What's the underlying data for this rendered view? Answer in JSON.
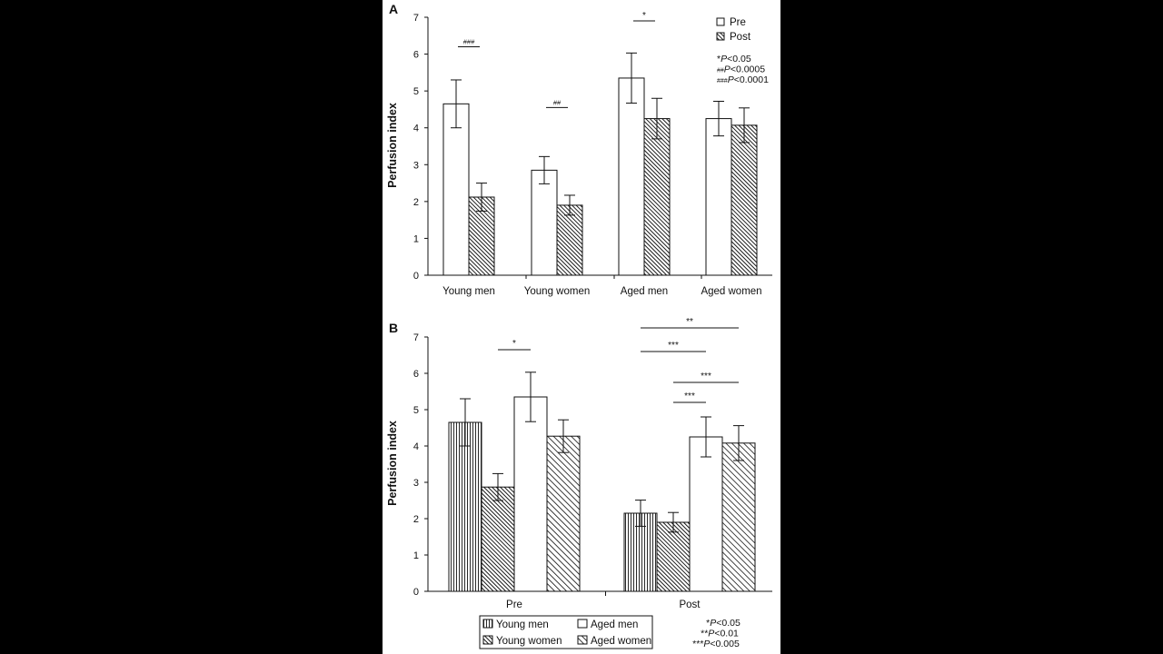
{
  "chart_data": [
    {
      "panel_label": "A",
      "type": "bar",
      "categories": [
        "Young men",
        "Young women",
        "Aged men",
        "Aged women"
      ],
      "series": [
        {
          "name": "Pre",
          "pattern": "white",
          "values": [
            4.65,
            2.85,
            5.35,
            4.25
          ],
          "errors": [
            0.65,
            0.37,
            0.68,
            0.47
          ]
        },
        {
          "name": "Post",
          "pattern": "hatch-dense",
          "values": [
            2.12,
            1.9,
            4.25,
            4.07
          ],
          "errors": [
            0.38,
            0.27,
            0.55,
            0.47
          ]
        }
      ],
      "ylabel": "Perfusion index",
      "xlabel": "",
      "ylim": [
        0,
        7
      ],
      "yticks": [
        "0",
        "1",
        "2",
        "3",
        "4",
        "5",
        "6",
        "7"
      ],
      "legend": [
        {
          "pattern": "white",
          "label": "Pre"
        },
        {
          "pattern": "hatch-dense",
          "label": "Post"
        }
      ],
      "significance_legend": [
        {
          "symbol": "*",
          "text": "P<0.05"
        },
        {
          "symbol": "##",
          "text": "P<0.0005"
        },
        {
          "symbol": "###",
          "text": "P<0.0001"
        }
      ],
      "annotations": [
        {
          "label": "###",
          "category": 0,
          "y_value": 6.2
        },
        {
          "label": "##",
          "category": 1,
          "y_value": 4.55
        },
        {
          "label": "*",
          "category": 2,
          "y_value": 6.9
        }
      ]
    },
    {
      "panel_label": "B",
      "type": "bar",
      "categories": [
        "Pre",
        "Post"
      ],
      "series": [
        {
          "name": "Young men",
          "pattern": "vertical",
          "values": [
            4.65,
            2.15
          ],
          "errors": [
            0.65,
            0.36
          ]
        },
        {
          "name": "Young women",
          "pattern": "hatch-dense",
          "values": [
            2.87,
            1.9
          ],
          "errors": [
            0.37,
            0.27
          ]
        },
        {
          "name": "Aged men",
          "pattern": "white",
          "values": [
            5.35,
            4.25
          ],
          "errors": [
            0.68,
            0.55
          ]
        },
        {
          "name": "Aged women",
          "pattern": "hatch-wide",
          "values": [
            4.27,
            4.08
          ],
          "errors": [
            0.45,
            0.48
          ]
        }
      ],
      "ylabel": "Perfusion index",
      "xlabel": "",
      "ylim": [
        0,
        7
      ],
      "yticks": [
        "0",
        "1",
        "2",
        "3",
        "4",
        "5",
        "6",
        "7"
      ],
      "legend": [
        {
          "pattern": "vertical",
          "label": "Young men"
        },
        {
          "pattern": "white",
          "label": "Aged men"
        },
        {
          "pattern": "hatch-dense",
          "label": "Young women"
        },
        {
          "pattern": "hatch-wide",
          "label": "Aged women"
        }
      ],
      "significance_legend": [
        {
          "symbol": "*",
          "text": "P<0.05"
        },
        {
          "symbol": "**",
          "text": "P<0.01"
        },
        {
          "symbol": "***",
          "text": "P<0.005"
        }
      ],
      "annotations": [
        {
          "label": "*",
          "group": 0,
          "from_series": 1,
          "to_series": 2,
          "y_value": 6.65
        },
        {
          "label": "**",
          "group": 1,
          "from_series": 0,
          "to_series": 3,
          "y_value": 7.25
        },
        {
          "label": "***",
          "group": 1,
          "from_series": 0,
          "to_series": 2,
          "y_value": 6.6
        },
        {
          "label": "***",
          "group": 1,
          "from_series": 1,
          "to_series": 3,
          "y_value": 5.75
        },
        {
          "label": "***",
          "group": 1,
          "from_series": 1,
          "to_series": 2,
          "y_value": 5.2
        }
      ]
    }
  ]
}
